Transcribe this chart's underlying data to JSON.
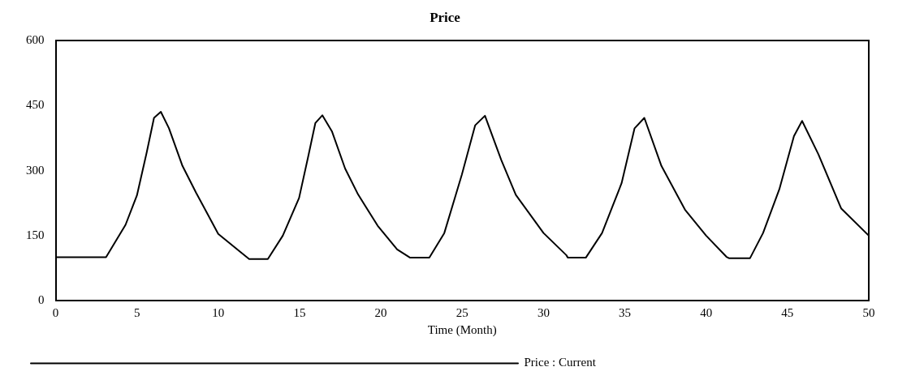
{
  "chart_data": {
    "type": "line",
    "title": "Price",
    "xlabel": "Time (Month)",
    "xlim": [
      0,
      50
    ],
    "xticks": [
      0,
      5,
      10,
      15,
      20,
      25,
      30,
      35,
      40,
      45,
      50
    ],
    "ylim": [
      0,
      600
    ],
    "yticks": [
      0,
      150,
      300,
      450,
      600
    ],
    "grid": false,
    "legend": "bottom",
    "marker": "none",
    "line_style": "solid",
    "series": [
      {
        "name": "Price : Current",
        "color": "#000000",
        "x": [
          0,
          3.1,
          4.3,
          5.0,
          5.6,
          6.05,
          6.47,
          6.97,
          7.8,
          8.64,
          10.0,
          11.3,
          11.9,
          13.05,
          13.97,
          14.97,
          15.55,
          15.97,
          16.4,
          17.0,
          17.8,
          18.6,
          19.8,
          21.0,
          21.8,
          22.98,
          23.9,
          24.98,
          25.8,
          26.4,
          27.4,
          28.3,
          30.0,
          31.4,
          31.5,
          32.6,
          33.6,
          34.8,
          35.6,
          36.2,
          37.25,
          38.7,
          40.0,
          41.25,
          41.4,
          42.7,
          43.5,
          44.5,
          45.4,
          45.9,
          46.9,
          48.3,
          50
        ],
        "values": [
          100,
          100,
          175,
          243,
          342,
          422,
          436,
          398,
          311,
          249,
          154,
          114,
          96,
          96,
          150,
          237,
          336,
          410,
          428,
          390,
          305,
          245,
          173,
          118,
          99,
          99,
          156,
          291,
          405,
          427,
          325,
          244,
          156,
          105,
          99,
          99,
          156,
          271,
          398,
          422,
          311,
          210,
          150,
          101,
          98,
          98,
          156,
          257,
          380,
          415,
          338,
          213,
          150
        ]
      }
    ]
  }
}
